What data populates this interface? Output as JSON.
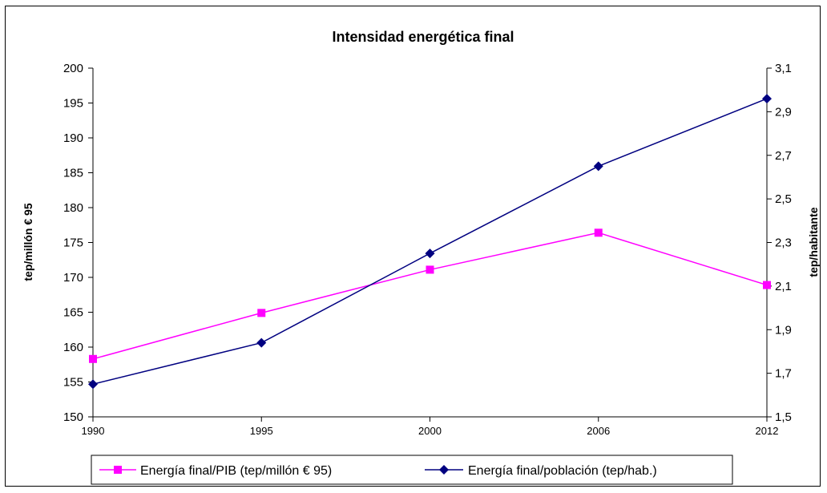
{
  "chart_data": {
    "type": "line",
    "title": "Intensidad energética final",
    "categories": [
      "1990",
      "1995",
      "2000",
      "2006",
      "2012"
    ],
    "y_left": {
      "label": "tep/millón € 95",
      "range": [
        150,
        200
      ],
      "ticks": [
        "150",
        "155",
        "160",
        "165",
        "170",
        "175",
        "180",
        "185",
        "190",
        "195",
        "200"
      ]
    },
    "y_right": {
      "label": "tep/habitante",
      "range": [
        1.5,
        3.1
      ],
      "ticks": [
        "1,5",
        "1,7",
        "1,9",
        "2,1",
        "2,3",
        "2,5",
        "2,7",
        "2,9",
        "3,1"
      ]
    },
    "series": [
      {
        "name": "Energía final/PIB (tep/millón € 95)",
        "axis": "left",
        "color": "#ff00ff",
        "marker": "square",
        "values": [
          158.3,
          164.9,
          171.1,
          176.4,
          168.9
        ]
      },
      {
        "name": "Energía final/población (tep/hab.)",
        "axis": "right",
        "color": "#000080",
        "marker": "diamond",
        "values": [
          1.65,
          1.84,
          2.25,
          2.65,
          2.96
        ]
      }
    ],
    "legend_position": "bottom",
    "grid": false
  }
}
